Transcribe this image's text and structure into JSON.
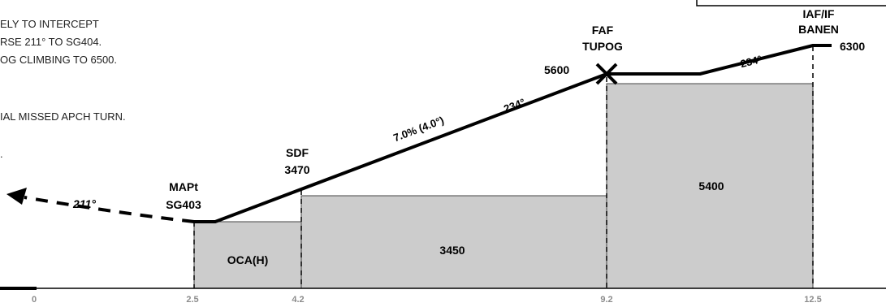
{
  "notes": [
    "ELY TO INTERCEPT",
    "RSE 211° TO SG404.",
    "OG CLIMBING TO 6500.",
    "IAL MISSED APCH TURN.",
    "."
  ],
  "fixes": {
    "iaf": {
      "line1": "IAF/IF",
      "line2": "BANEN",
      "altitude": "6300"
    },
    "faf": {
      "line1": "FAF",
      "line2": "TUPOG",
      "altitude": "5600"
    },
    "sdf": {
      "line1": "SDF",
      "line2": "3470"
    },
    "mapt": {
      "line1": "MAPt",
      "line2": "SG403"
    }
  },
  "path_labels": {
    "initial_course": "234°",
    "final_course": "234°",
    "gradient": "7.0% (4.0°)",
    "missed_course": "211°"
  },
  "segments": {
    "left": "OCA(H)",
    "middle": "3450",
    "right": "5400"
  },
  "distance_ticks": [
    "0",
    "2.5",
    "4.2",
    "9.2",
    "12.5"
  ],
  "colors": {
    "terrain": "#cccccc",
    "path": "#000000",
    "tick": "#8c8c8c"
  }
}
